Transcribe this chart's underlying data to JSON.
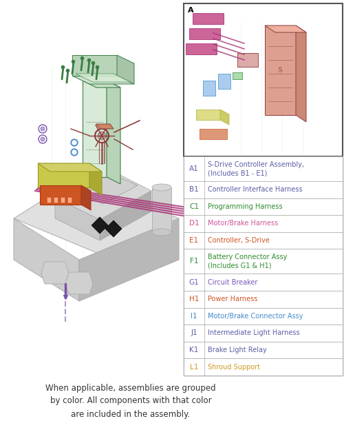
{
  "figsize": [
    5.0,
    6.27
  ],
  "dpi": 100,
  "bg_color": "#ffffff",
  "table_rows": [
    {
      "code": "A1",
      "code_color": "#5b5ea6",
      "desc": "S-Drive Controller Assembly,\n(Includes B1 - E1)",
      "desc_color": "#5b5ea6"
    },
    {
      "code": "B1",
      "code_color": "#5b5ea6",
      "desc": "Controller Interface Harness",
      "desc_color": "#5b5ea6"
    },
    {
      "code": "C1",
      "code_color": "#2e8b2e",
      "desc": "Programming Harness",
      "desc_color": "#2e8b2e"
    },
    {
      "code": "D1",
      "code_color": "#cc5599",
      "desc": "Motor/Brake Harness",
      "desc_color": "#cc5599"
    },
    {
      "code": "E1",
      "code_color": "#cc5522",
      "desc": "Controller, S-Drive",
      "desc_color": "#cc5522"
    },
    {
      "code": "F1",
      "code_color": "#2e8b2e",
      "desc": "Battery Connector Assy\n(Includes G1 & H1)",
      "desc_color": "#2e8b2e"
    },
    {
      "code": "G1",
      "code_color": "#7755bb",
      "desc": "Circuit Breaker",
      "desc_color": "#7755bb"
    },
    {
      "code": "H1",
      "code_color": "#cc5522",
      "desc": "Power Harness",
      "desc_color": "#cc5522"
    },
    {
      "code": "I1",
      "code_color": "#4488cc",
      "desc": "Motor/Brake Connector Assy",
      "desc_color": "#4488cc"
    },
    {
      "code": "J1",
      "code_color": "#5b5ea6",
      "desc": "Intermediate Light Harness",
      "desc_color": "#5b5ea6"
    },
    {
      "code": "K1",
      "code_color": "#5b5ea6",
      "desc": "Brake Light Relay",
      "desc_color": "#5b5ea6"
    },
    {
      "code": "L1",
      "code_color": "#cc9922",
      "desc": "Shroud Support",
      "desc_color": "#cc9922"
    }
  ],
  "footer_text": "When applicable, assemblies are grouped\nby color. All components with that color\nare included in the assembly.",
  "colors": {
    "green": "#3a7d44",
    "dark_green": "#336633",
    "red_brown": "#8b3a3a",
    "dark_red": "#7a2020",
    "yellow": "#c8c84a",
    "pink": "#aa3377",
    "orange": "#cc5522",
    "purple": "#7755aa",
    "blue": "#4488cc",
    "frame": "#aaaaaa",
    "frame_light": "#cccccc",
    "frame_dark": "#999999"
  }
}
